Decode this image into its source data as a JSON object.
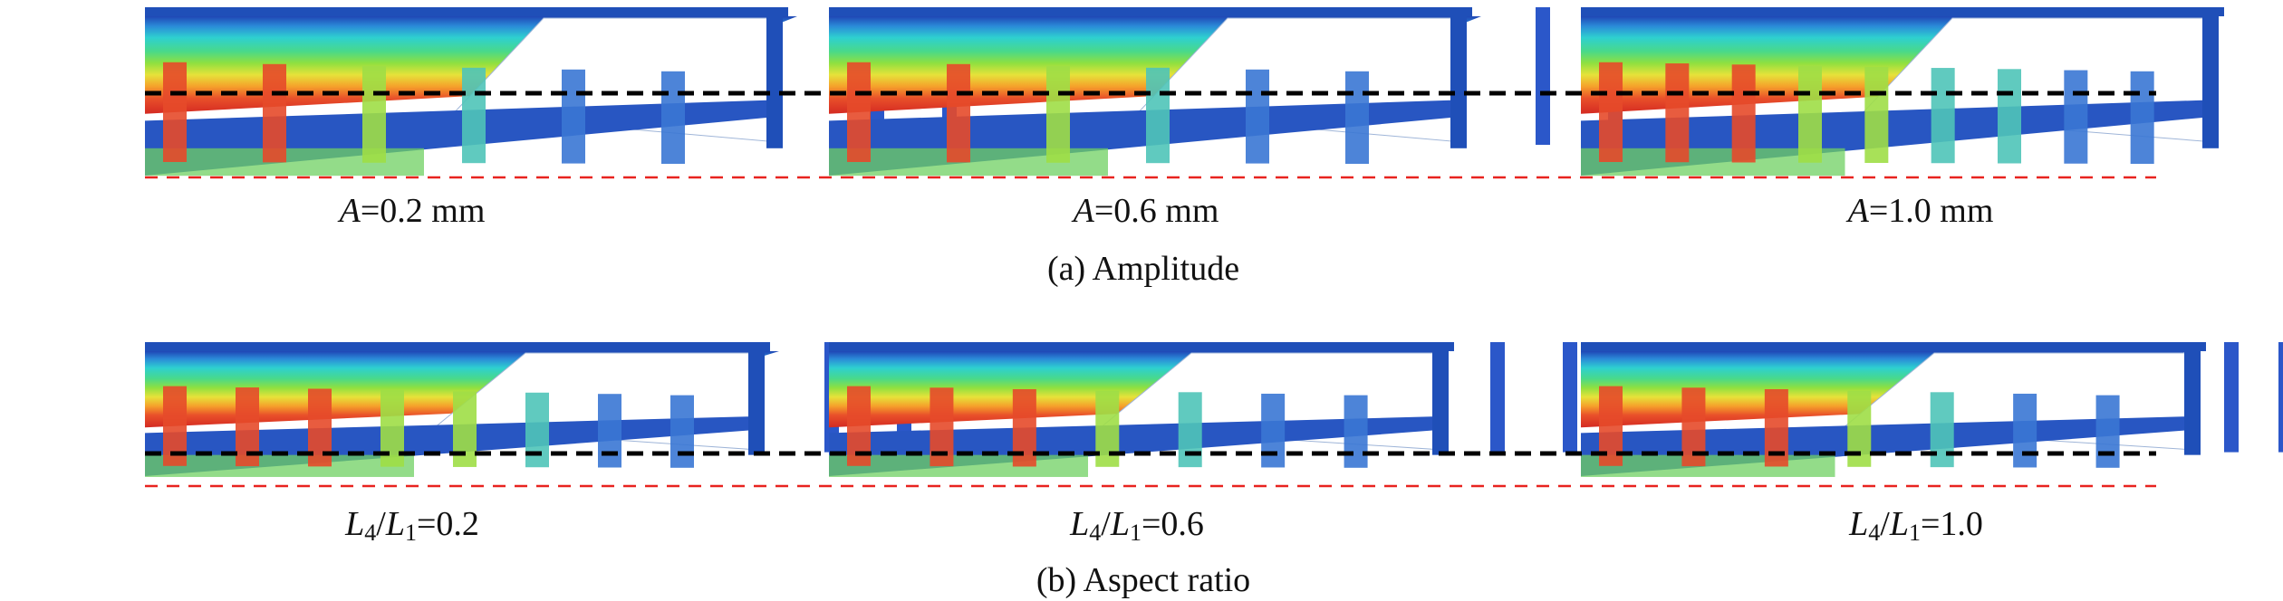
{
  "rows": [
    {
      "caption": "(a) Amplitude",
      "panels": [
        {
          "label_var": "A",
          "label_val": "=0.2 mm"
        },
        {
          "label_var": "A",
          "label_val": "=0.6 mm"
        },
        {
          "label_var": "A",
          "label_val": "=1.0 mm"
        }
      ]
    },
    {
      "caption": "(b) Aspect ratio",
      "panels": [
        {
          "label_num": "L",
          "num_sub": "4",
          "label_den": "L",
          "den_sub": "1",
          "label_val": "=0.2"
        },
        {
          "label_num": "L",
          "num_sub": "4",
          "label_den": "L",
          "den_sub": "1",
          "label_val": "=0.6"
        },
        {
          "label_num": "L",
          "num_sub": "4",
          "label_den": "L",
          "den_sub": "1",
          "label_val": "=1.0"
        }
      ]
    }
  ],
  "colors": {
    "reference_black": "#000000",
    "reference_red": "#e8231f",
    "frame_blue": "#1f4fb8",
    "bar_blue": "#2b57c9"
  }
}
